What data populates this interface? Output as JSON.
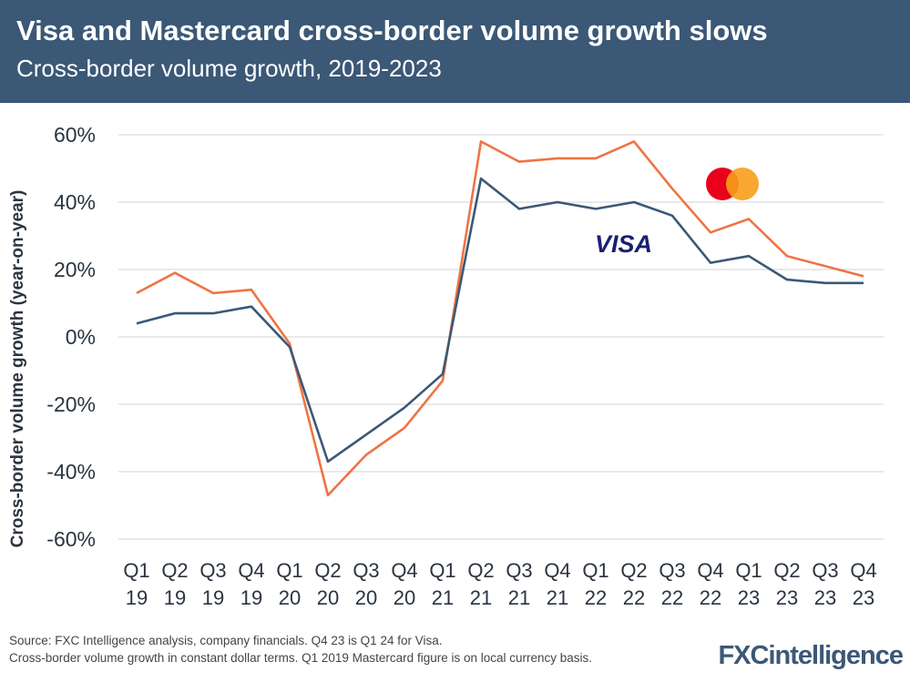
{
  "header": {
    "title": "Visa and Mastercard cross-border volume growth slows",
    "subtitle": "Cross-border volume growth, 2019-2023"
  },
  "chart_data": {
    "type": "line",
    "title": "Visa and Mastercard cross-border volume growth slows",
    "subtitle": "Cross-border volume growth, 2019-2023",
    "ylabel": "Cross-border volume growth (year-on-year)",
    "xlabel": "",
    "ylim": [
      -60,
      60
    ],
    "yticks": [
      60,
      40,
      20,
      0,
      -20,
      -40,
      -60
    ],
    "ytick_labels": [
      "60%",
      "40%",
      "20%",
      "0%",
      "-20%",
      "-40%",
      "-60%"
    ],
    "grid": true,
    "categories": [
      [
        "Q1",
        "19"
      ],
      [
        "Q2",
        "19"
      ],
      [
        "Q3",
        "19"
      ],
      [
        "Q4",
        "19"
      ],
      [
        "Q1",
        "20"
      ],
      [
        "Q2",
        "20"
      ],
      [
        "Q3",
        "20"
      ],
      [
        "Q4",
        "20"
      ],
      [
        "Q1",
        "21"
      ],
      [
        "Q2",
        "21"
      ],
      [
        "Q3",
        "21"
      ],
      [
        "Q4",
        "21"
      ],
      [
        "Q1",
        "22"
      ],
      [
        "Q2",
        "22"
      ],
      [
        "Q3",
        "22"
      ],
      [
        "Q4",
        "22"
      ],
      [
        "Q1",
        "23"
      ],
      [
        "Q2",
        "23"
      ],
      [
        "Q3",
        "23"
      ],
      [
        "Q4",
        "23"
      ]
    ],
    "series": [
      {
        "name": "VISA",
        "color": "#3b5876",
        "legend": "visa-logo",
        "values": [
          4,
          7,
          7,
          9,
          -3,
          -37,
          -29,
          -21,
          -11,
          47,
          38,
          40,
          38,
          40,
          36,
          22,
          24,
          17,
          16,
          16
        ]
      },
      {
        "name": "Mastercard",
        "color": "#ee7444",
        "legend": "mastercard-logo",
        "values": [
          13,
          19,
          13,
          14,
          -2,
          -47,
          -35,
          -27,
          -13,
          58,
          52,
          53,
          53,
          58,
          44,
          31,
          35,
          24,
          21,
          18
        ]
      }
    ]
  },
  "footer": {
    "source": "Source: FXC Intelligence analysis, company financials. Q4 23 is Q1 24 for Visa.",
    "note": "Cross-border volume growth in constant dollar terms. Q1 2019 Mastercard figure is on local currency basis.",
    "logo": "FXCintelligence"
  }
}
